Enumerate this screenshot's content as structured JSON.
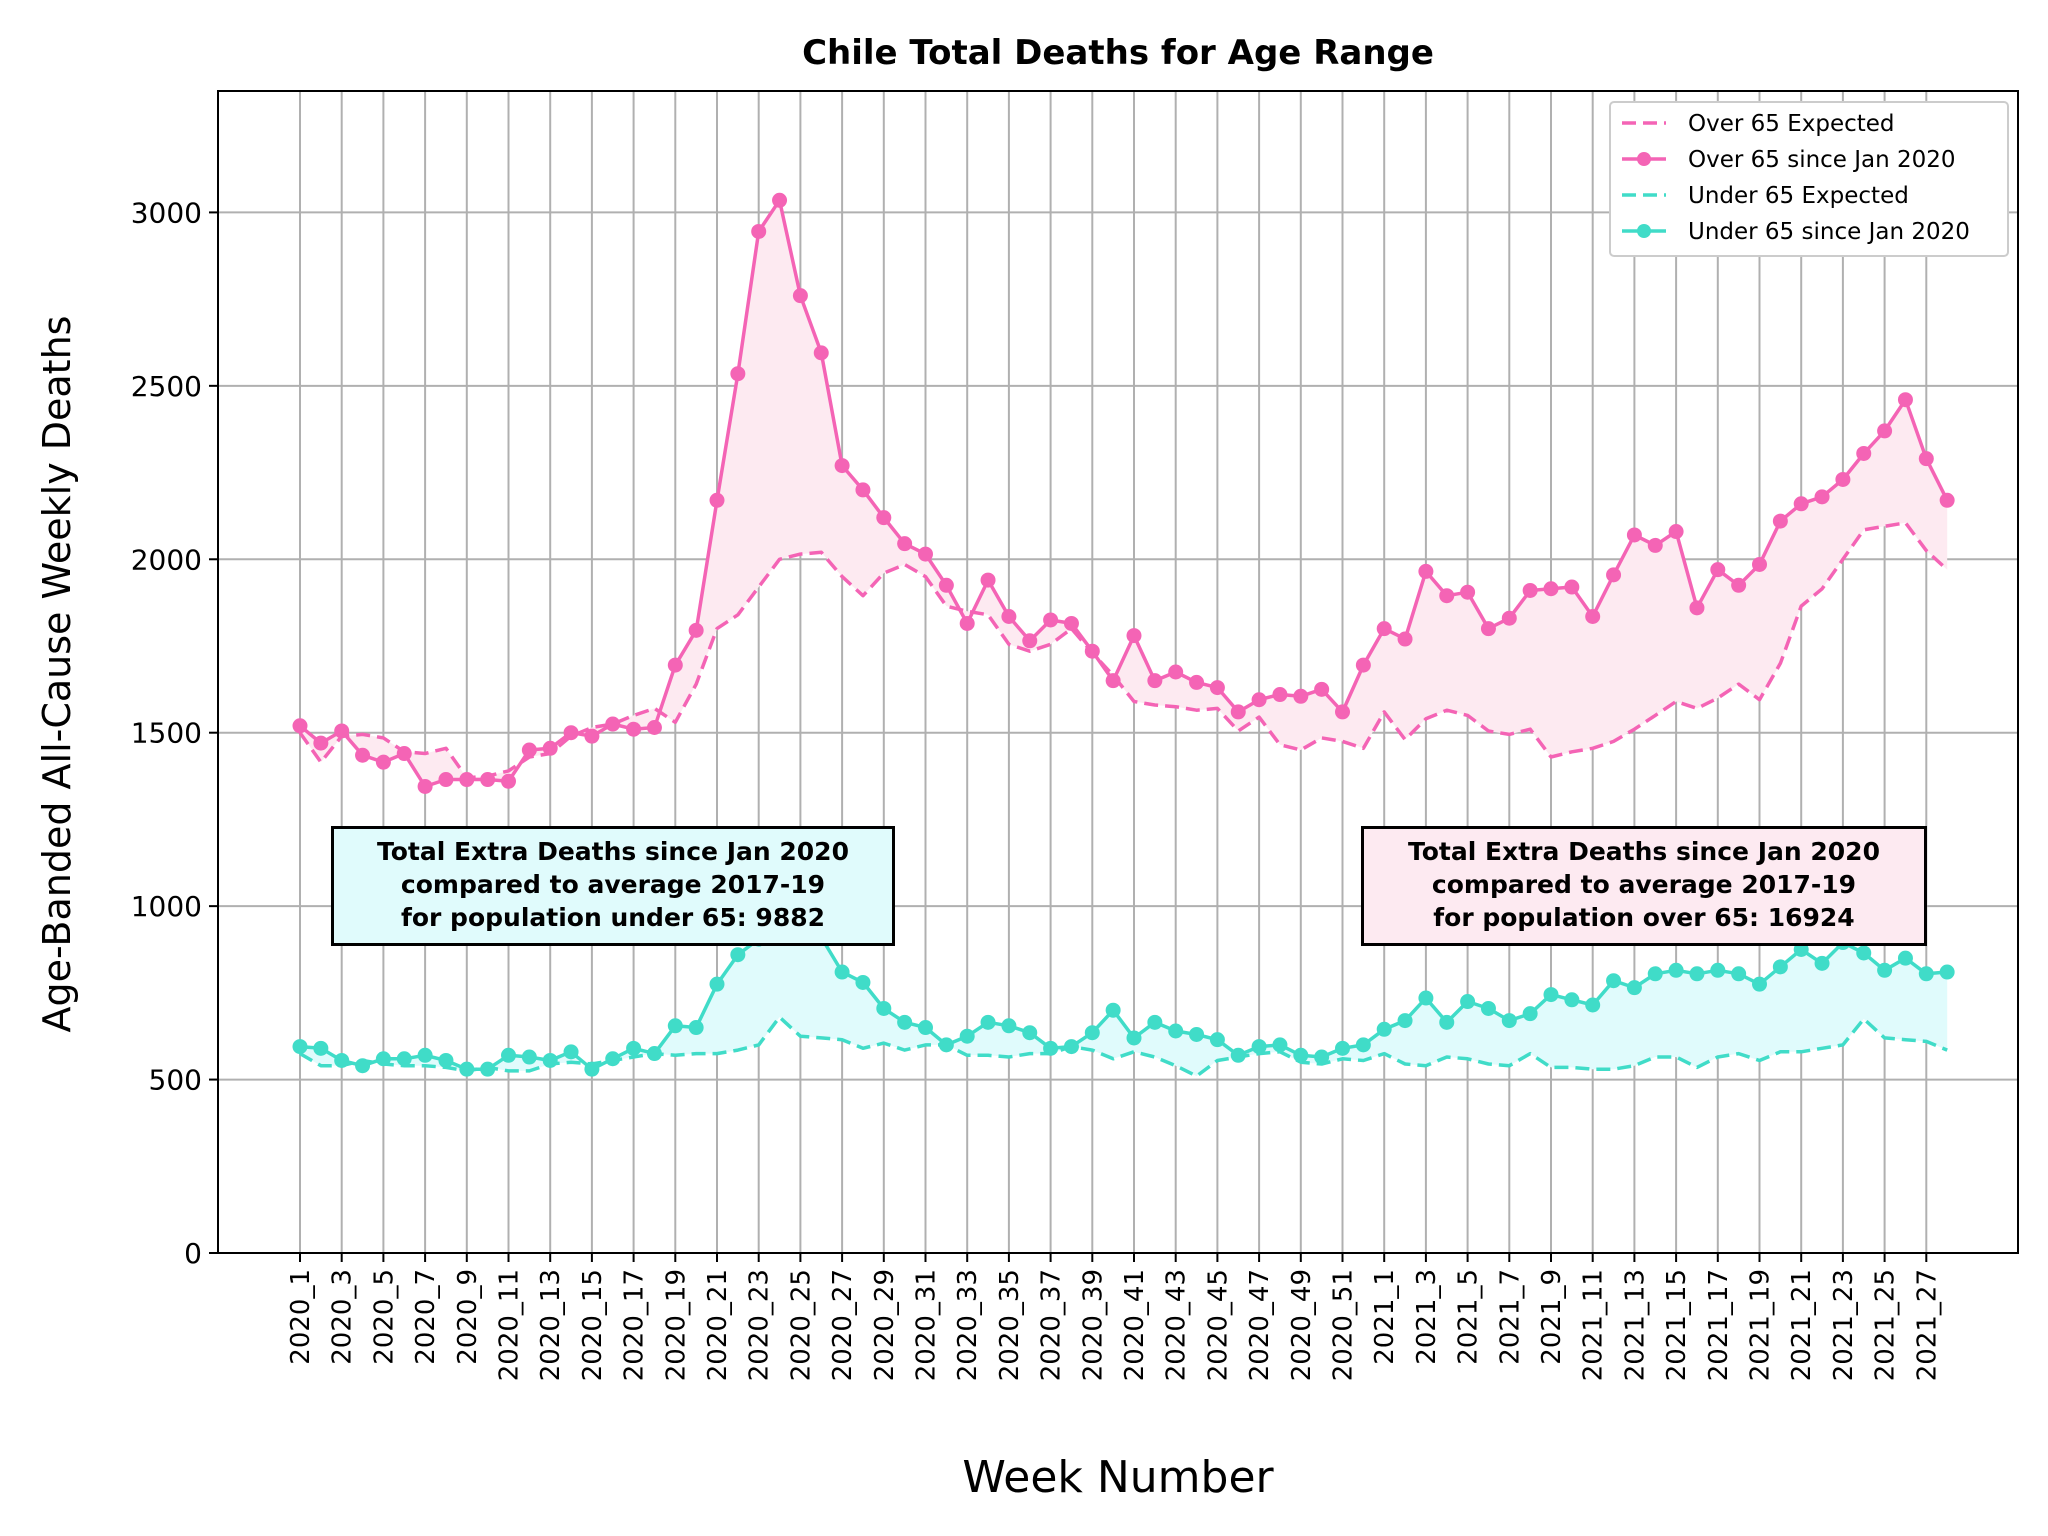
{
  "colors": {
    "over": "#f464b5",
    "over_fill": "#fdeaf1",
    "under": "#40dcc8",
    "under_fill": "#e0fbfc",
    "grid": "#b0b0b0",
    "box_under_bg": "#e0fbfc",
    "box_over_bg": "#fdeaf1"
  },
  "boxes": {
    "under": {
      "line1": "Total Extra Deaths since Jan 2020",
      "line2": "compared to average 2017-19",
      "line3": "for population under 65: 9882"
    },
    "over": {
      "line1": "Total Extra Deaths since Jan 2020",
      "line2": "compared to average 2017-19",
      "line3": "for population over 65: 16924"
    }
  },
  "chart_data": {
    "type": "line",
    "title": "Chile Total Deaths for Age Range",
    "xlabel": "Week Number",
    "ylabel": "Age-Banded All-Cause Weekly Deaths",
    "ylim": [
      0,
      3350
    ],
    "yticks": [
      0,
      500,
      1000,
      1500,
      2000,
      2500,
      3000
    ],
    "grid": true,
    "legend_position": "top-right",
    "x": [
      "2020_1",
      "2020_2",
      "2020_3",
      "2020_4",
      "2020_5",
      "2020_6",
      "2020_7",
      "2020_8",
      "2020_9",
      "2020_10",
      "2020_11",
      "2020_12",
      "2020_13",
      "2020_14",
      "2020_15",
      "2020_16",
      "2020_17",
      "2020_18",
      "2020_19",
      "2020_20",
      "2020_21",
      "2020_22",
      "2020_23",
      "2020_24",
      "2020_25",
      "2020_26",
      "2020_27",
      "2020_28",
      "2020_29",
      "2020_30",
      "2020_31",
      "2020_32",
      "2020_33",
      "2020_34",
      "2020_35",
      "2020_36",
      "2020_37",
      "2020_38",
      "2020_39",
      "2020_40",
      "2020_41",
      "2020_42",
      "2020_43",
      "2020_44",
      "2020_45",
      "2020_46",
      "2020_47",
      "2020_48",
      "2020_49",
      "2020_50",
      "2020_51",
      "2020_52",
      "2021_1",
      "2021_2",
      "2021_3",
      "2021_4",
      "2021_5",
      "2021_6",
      "2021_7",
      "2021_8",
      "2021_9",
      "2021_10",
      "2021_11",
      "2021_12",
      "2021_13",
      "2021_14",
      "2021_15",
      "2021_16",
      "2021_17",
      "2021_18",
      "2021_19",
      "2021_20",
      "2021_21",
      "2021_22",
      "2021_23",
      "2021_24",
      "2021_25",
      "2021_26",
      "2021_27",
      "2021_28"
    ],
    "tick_labels": [
      "2020_1",
      "2020_3",
      "2020_5",
      "2020_7",
      "2020_9",
      "2020_11",
      "2020_13",
      "2020_15",
      "2020_17",
      "2020_19",
      "2020_21",
      "2020_23",
      "2020_25",
      "2020_27",
      "2020_29",
      "2020_31",
      "2020_33",
      "2020_35",
      "2020_37",
      "2020_39",
      "2020_41",
      "2020_43",
      "2020_45",
      "2020_47",
      "2020_49",
      "2020_51",
      "2021_1",
      "2021_3",
      "2021_5",
      "2021_7",
      "2021_9",
      "2021_11",
      "2021_13",
      "2021_15",
      "2021_17",
      "2021_19",
      "2021_21",
      "2021_23",
      "2021_25",
      "2021_27"
    ],
    "series": [
      {
        "name": "Over 65 Expected",
        "style": "dashed",
        "color": "#f464b5",
        "values": [
          1500,
          1415,
          1490,
          1495,
          1485,
          1445,
          1440,
          1455,
          1370,
          1375,
          1390,
          1430,
          1440,
          1490,
          1515,
          1525,
          1550,
          1570,
          1530,
          1640,
          1800,
          1840,
          1920,
          2000,
          2015,
          2020,
          1950,
          1895,
          1960,
          1985,
          1950,
          1865,
          1850,
          1840,
          1755,
          1735,
          1755,
          1800,
          1730,
          1665,
          1590,
          1580,
          1575,
          1565,
          1570,
          1505,
          1545,
          1465,
          1450,
          1485,
          1475,
          1455,
          1560,
          1480,
          1540,
          1565,
          1550,
          1505,
          1495,
          1510,
          1430,
          1445,
          1455,
          1475,
          1510,
          1550,
          1590,
          1570,
          1600,
          1640,
          1595,
          1700,
          1865,
          1915,
          2000,
          2085,
          2095,
          2105,
          2025,
          1970
        ]
      },
      {
        "name": "Over 65 since Jan 2020",
        "style": "solid-marker",
        "color": "#f464b5",
        "values": [
          1520,
          1470,
          1505,
          1435,
          1415,
          1440,
          1345,
          1365,
          1365,
          1365,
          1360,
          1450,
          1455,
          1500,
          1490,
          1525,
          1510,
          1515,
          1695,
          1795,
          2170,
          2535,
          2945,
          3035,
          2760,
          2595,
          2270,
          2200,
          2120,
          2045,
          2015,
          1925,
          1815,
          1940,
          1835,
          1765,
          1825,
          1815,
          1735,
          1650,
          1780,
          1650,
          1675,
          1645,
          1630,
          1560,
          1595,
          1610,
          1605,
          1625,
          1560,
          1695,
          1800,
          1770,
          1965,
          1895,
          1905,
          1800,
          1830,
          1910,
          1915,
          1920,
          1835,
          1955,
          2070,
          2040,
          2080,
          1860,
          1970,
          1925,
          1985,
          2110,
          2160,
          2180,
          2230,
          2305,
          2370,
          2460,
          2290,
          2170
        ]
      },
      {
        "name": "Under 65 Expected",
        "style": "dashed",
        "color": "#40dcc8",
        "values": [
          575,
          540,
          540,
          555,
          545,
          540,
          540,
          535,
          525,
          535,
          525,
          525,
          545,
          550,
          545,
          555,
          565,
          575,
          570,
          575,
          575,
          585,
          600,
          680,
          625,
          620,
          615,
          590,
          605,
          585,
          600,
          600,
          570,
          570,
          565,
          575,
          575,
          595,
          585,
          560,
          580,
          565,
          540,
          510,
          555,
          565,
          575,
          580,
          550,
          545,
          560,
          555,
          575,
          545,
          540,
          565,
          560,
          545,
          540,
          575,
          535,
          535,
          530,
          530,
          540,
          565,
          565,
          535,
          565,
          575,
          555,
          580,
          580,
          590,
          600,
          675,
          620,
          615,
          610,
          585
        ]
      },
      {
        "name": "Under 65 since Jan 2020",
        "style": "solid-marker",
        "color": "#40dcc8",
        "values": [
          595,
          590,
          555,
          540,
          560,
          560,
          570,
          555,
          530,
          530,
          570,
          565,
          555,
          580,
          530,
          560,
          590,
          575,
          655,
          650,
          775,
          860,
          905,
          930,
          915,
          910,
          810,
          780,
          705,
          665,
          650,
          600,
          625,
          665,
          655,
          635,
          590,
          595,
          635,
          700,
          620,
          665,
          640,
          630,
          615,
          570,
          595,
          600,
          570,
          565,
          590,
          600,
          645,
          670,
          735,
          665,
          725,
          705,
          670,
          690,
          745,
          730,
          715,
          785,
          765,
          805,
          815,
          805,
          815,
          805,
          775,
          825,
          875,
          835,
          895,
          865,
          815,
          850,
          805,
          810
        ]
      }
    ]
  }
}
